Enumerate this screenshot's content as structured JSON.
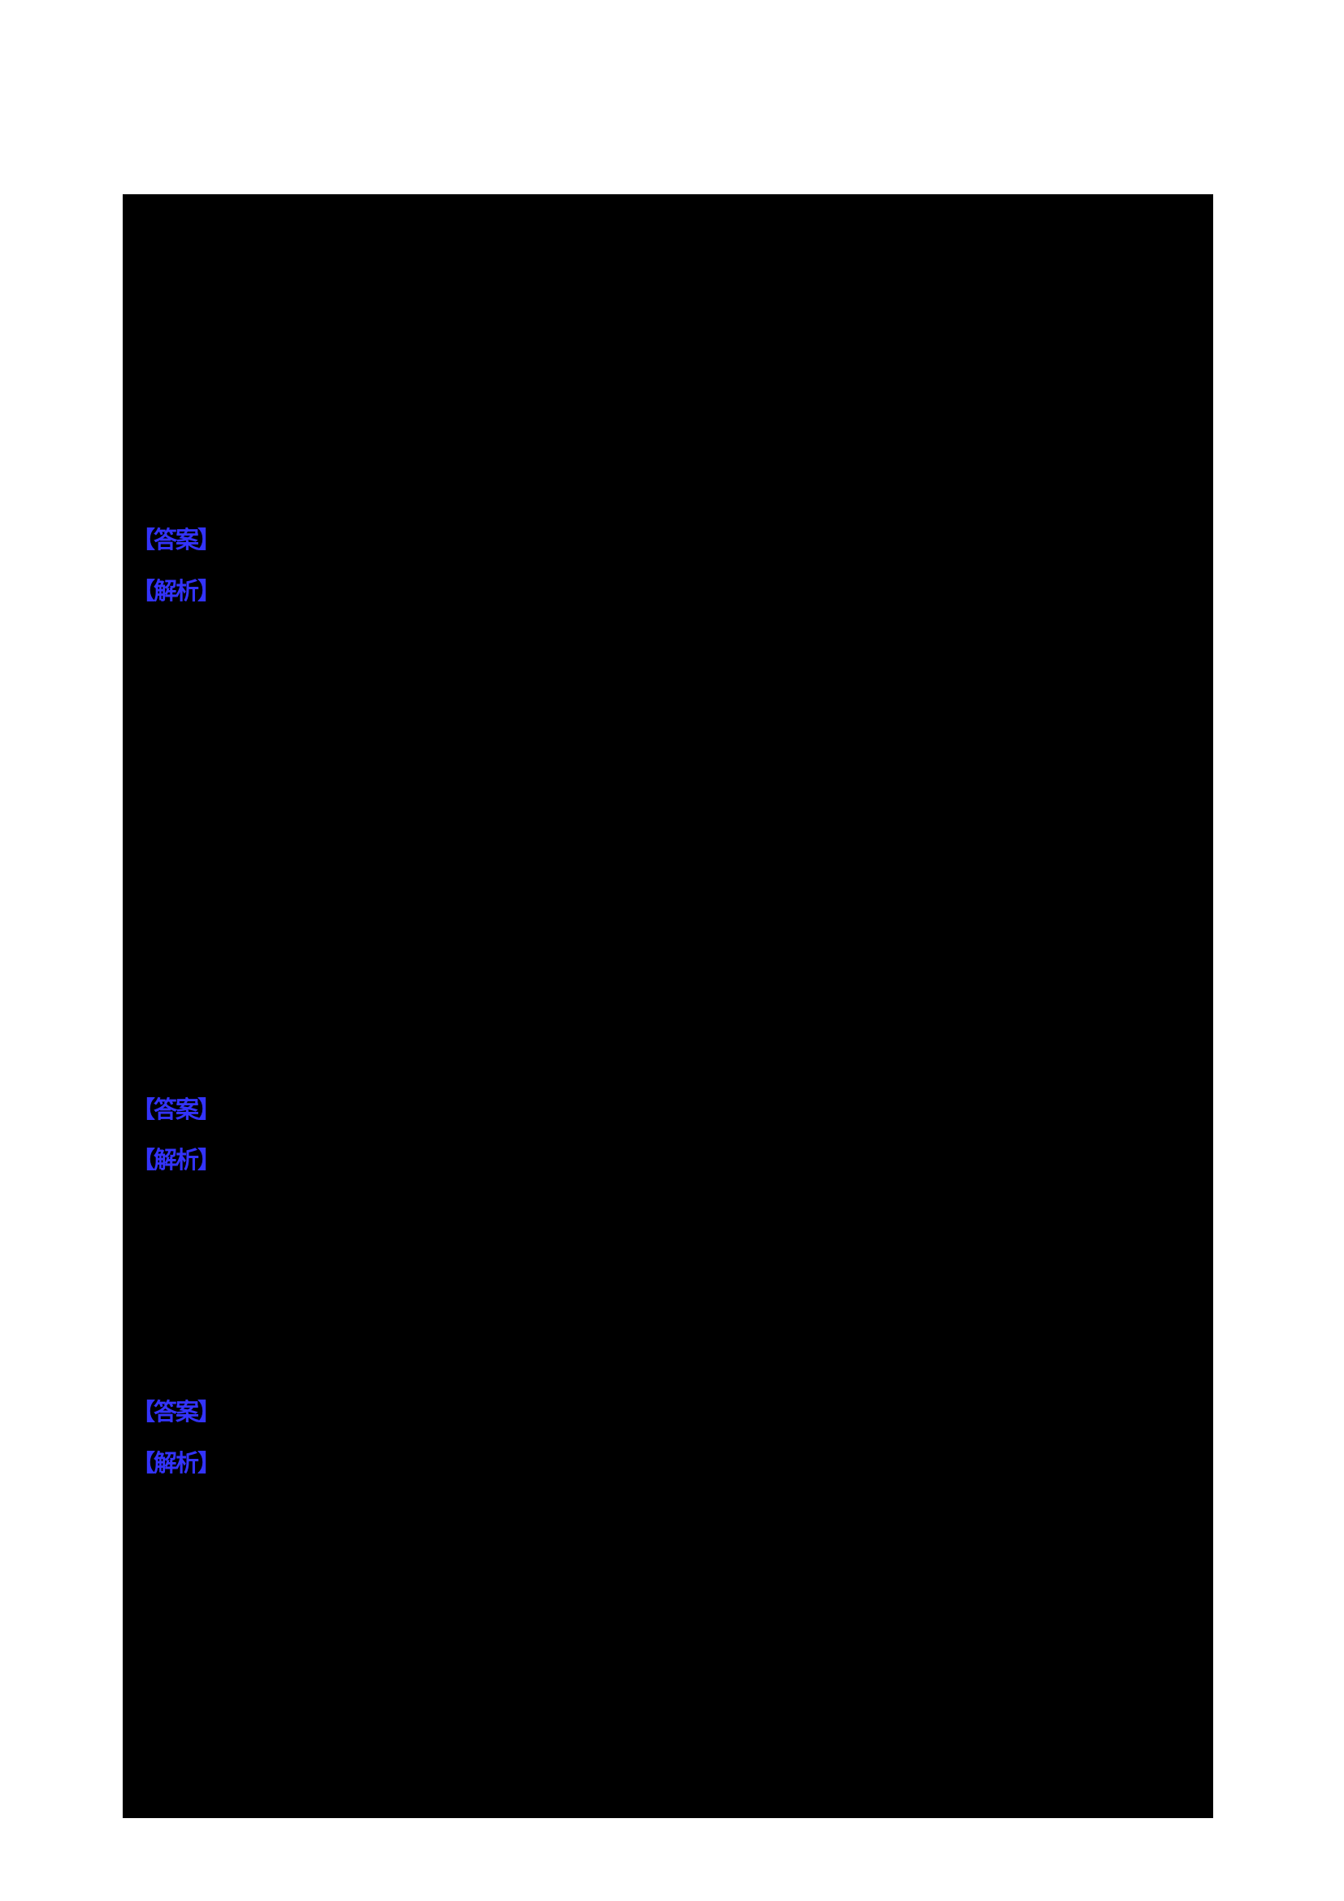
{
  "colors": {
    "page_background": "#FFFFFF",
    "content_background": "#000000",
    "label_blue": "#3333FA"
  },
  "blocks": [
    {
      "answer_label": "【答案】",
      "analysis_label": "【解析】"
    },
    {
      "answer_label": "【答案】",
      "analysis_label": "【解析】"
    },
    {
      "answer_label": "【答案】",
      "analysis_label": "【解析】"
    }
  ]
}
